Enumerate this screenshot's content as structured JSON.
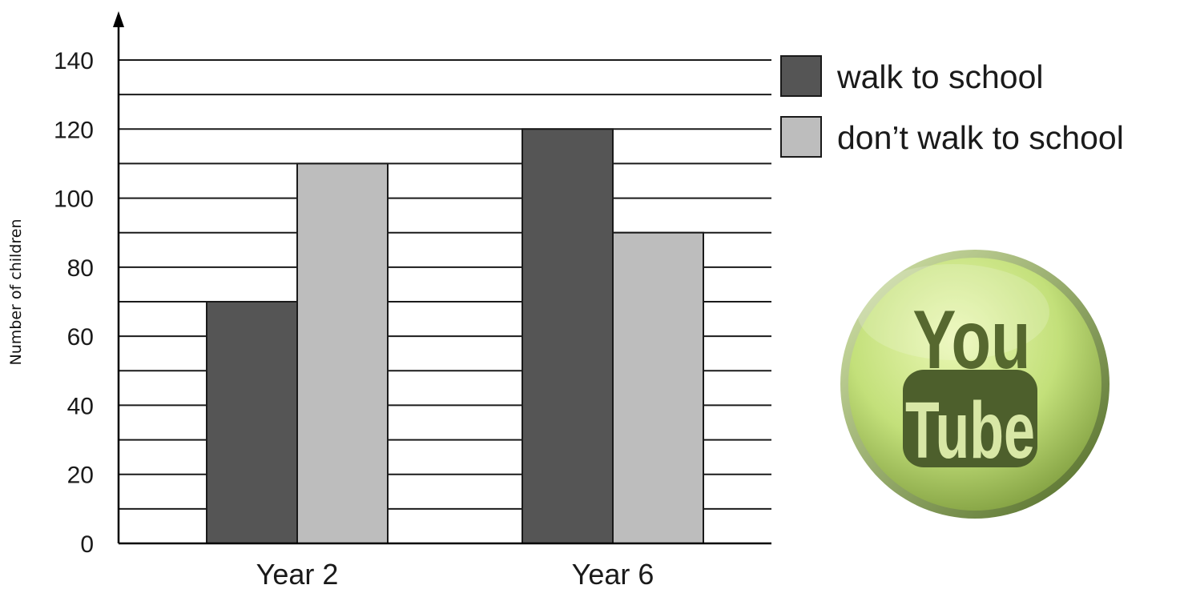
{
  "chart_data": {
    "type": "bar",
    "categories": [
      "Year 2",
      "Year 6"
    ],
    "series": [
      {
        "name": "walk to school",
        "values": [
          70,
          120
        ]
      },
      {
        "name": "don’t walk to school",
        "values": [
          110,
          90
        ]
      }
    ],
    "title": "",
    "xlabel": "",
    "ylabel": "Number of children",
    "ylim": [
      0,
      140
    ],
    "yticks": [
      "0",
      "20",
      "40",
      "60",
      "80",
      "100",
      "120",
      "140"
    ],
    "minor_gridlines": true,
    "grid": true,
    "legend_position": "top-right"
  },
  "colors": {
    "walk": "#555555",
    "dont_walk": "#bdbdbd",
    "grid": "#1a1a1a"
  },
  "logo": {
    "top_text": "You",
    "bottom_text": "Tube",
    "icon": "youtube-logo-icon"
  }
}
